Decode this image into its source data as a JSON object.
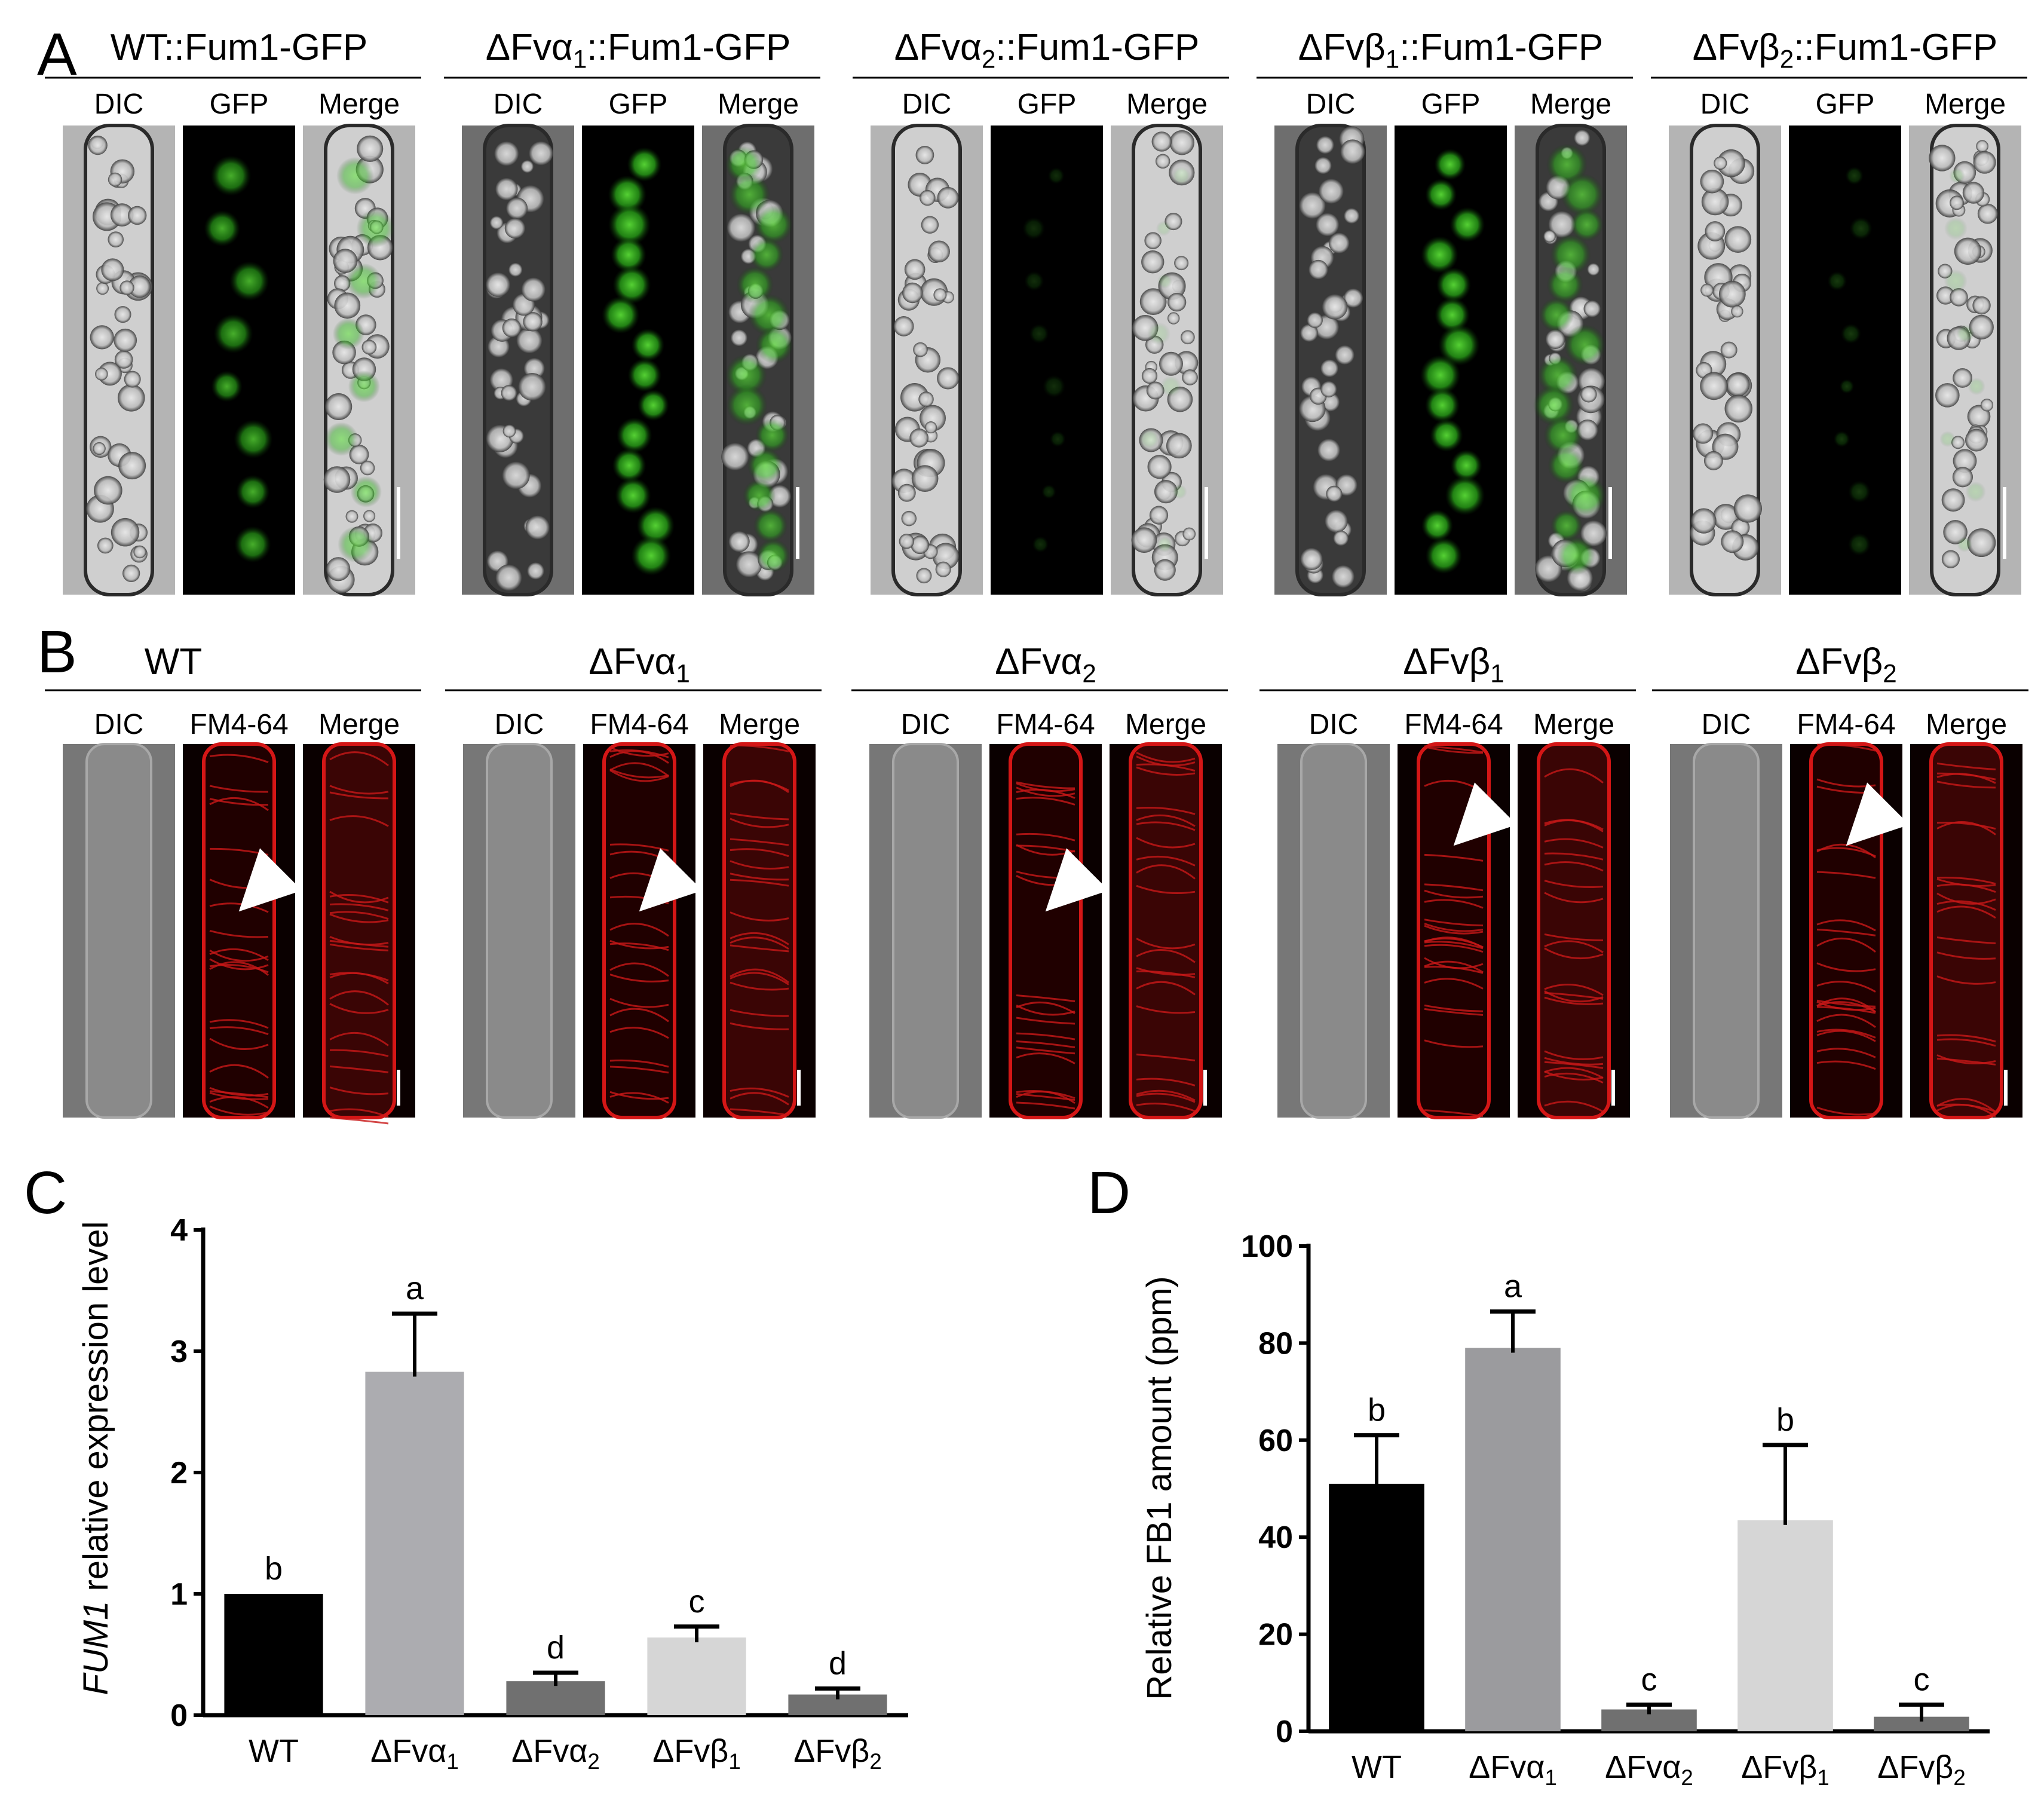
{
  "panel_a": {
    "letter": "A",
    "channels": [
      "DIC",
      "GFP",
      "Merge"
    ],
    "strains": [
      {
        "name": "WT::Fum1-GFP",
        "gfp_level": 0.75,
        "gfp_pattern": "puncta"
      },
      {
        "name": "ΔFvα1::Fum1-GFP",
        "gfp_level": 0.9,
        "gfp_pattern": "clusters"
      },
      {
        "name": "ΔFvα2::Fum1-GFP",
        "gfp_level": 0.2,
        "gfp_pattern": "faint"
      },
      {
        "name": "ΔFvβ1::Fum1-GFP",
        "gfp_level": 0.9,
        "gfp_pattern": "network"
      },
      {
        "name": "ΔFvβ2::Fum1-GFP",
        "gfp_level": 0.25,
        "gfp_pattern": "faint"
      }
    ]
  },
  "panel_b": {
    "letter": "B",
    "channels": [
      "DIC",
      "FM4-64",
      "Merge"
    ],
    "strains": [
      "WT",
      "ΔFvα1",
      "ΔFvα2",
      "ΔFvβ1",
      "ΔFvβ2"
    ]
  },
  "chart_data": [
    {
      "panel": "C",
      "type": "bar",
      "ylabel_italic": "FUM1",
      "ylabel_rest": " relative expression level",
      "categories": [
        "WT",
        "ΔFvα1",
        "ΔFvα2",
        "ΔFvβ1",
        "ΔFvβ2"
      ],
      "values": [
        1.0,
        2.83,
        0.28,
        0.64,
        0.17
      ],
      "errors": [
        0.0,
        0.48,
        0.07,
        0.09,
        0.05
      ],
      "letters": [
        "b",
        "a",
        "d",
        "c",
        "d"
      ],
      "colors": [
        "#000000",
        "#acacb0",
        "#707070",
        "#d6d6d6",
        "#707070"
      ],
      "ylim": [
        0,
        4
      ],
      "yticks": [
        "0",
        "1",
        "2",
        "3",
        "4"
      ]
    },
    {
      "panel": "D",
      "type": "bar",
      "ylabel": "Relative FB1 amount (ppm)",
      "categories": [
        "WT",
        "ΔFvα1",
        "ΔFvα2",
        "ΔFvβ1",
        "ΔFvβ2"
      ],
      "values": [
        51,
        79,
        4.5,
        43.5,
        3
      ],
      "errors": [
        10,
        7.5,
        1,
        15.5,
        2.5
      ],
      "letters": [
        "b",
        "a",
        "c",
        "b",
        "c"
      ],
      "colors": [
        "#000000",
        "#9b9b9e",
        "#707070",
        "#d6d6d6",
        "#707070"
      ],
      "ylim": [
        0,
        100
      ],
      "yticks": [
        "0",
        "20",
        "40",
        "60",
        "80",
        "100"
      ]
    }
  ]
}
